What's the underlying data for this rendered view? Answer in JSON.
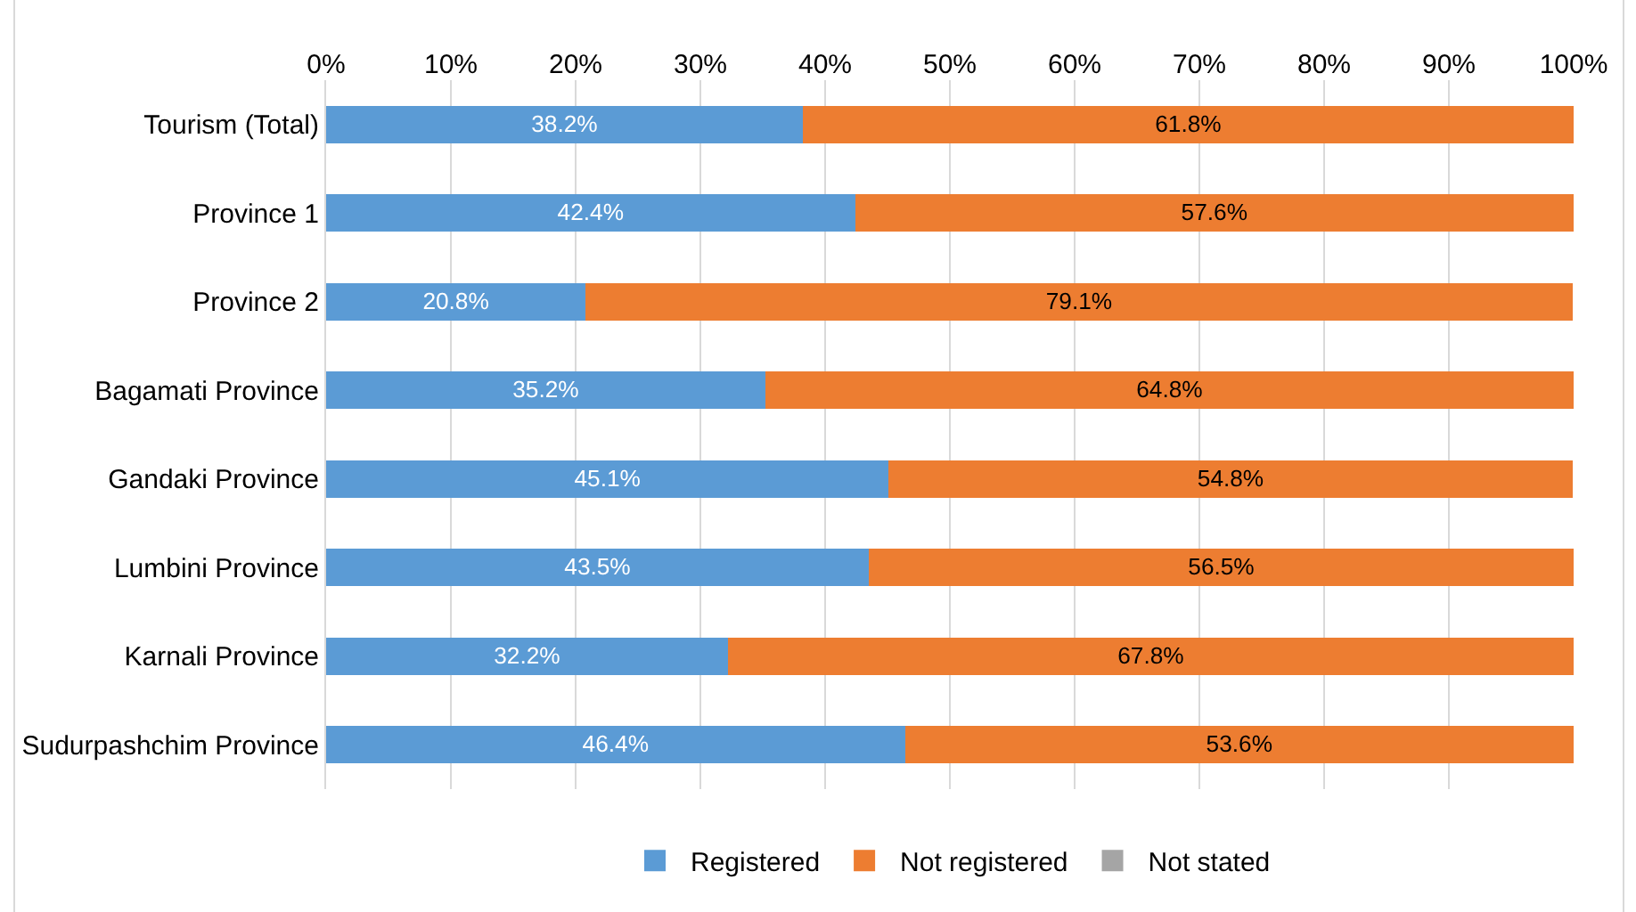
{
  "chart_data": {
    "type": "bar",
    "orientation": "horizontal",
    "stacked": true,
    "categories": [
      "Tourism (Total)",
      "Province 1",
      "Province 2",
      "Bagamati Province",
      "Gandaki Province",
      "Lumbini Province",
      "Karnali Province",
      "Sudurpashchim Province"
    ],
    "series": [
      {
        "name": "Registered",
        "color": "#5b9bd5",
        "values": [
          38.2,
          42.4,
          20.8,
          35.2,
          45.1,
          43.5,
          32.2,
          46.4
        ],
        "value_labels": [
          "38.2%",
          "42.4%",
          "20.8%",
          "35.2%",
          "45.1%",
          "43.5%",
          "32.2%",
          "46.4%"
        ]
      },
      {
        "name": "Not registered",
        "color": "#ed7d31",
        "values": [
          61.8,
          57.6,
          79.1,
          64.8,
          54.8,
          56.5,
          67.8,
          53.6
        ],
        "value_labels": [
          "61.8%",
          "57.6%",
          "79.1%",
          "64.8%",
          "54.8%",
          "56.5%",
          "67.8%",
          "53.6%"
        ]
      },
      {
        "name": "Not stated",
        "color": "#a5a5a5",
        "values": [
          0,
          0,
          null,
          0,
          null,
          0,
          0,
          0
        ]
      }
    ],
    "xlim": [
      0,
      100
    ],
    "xticks": [
      {
        "value": 0,
        "label": "0%"
      },
      {
        "value": 10,
        "label": "10%"
      },
      {
        "value": 20,
        "label": "20%"
      },
      {
        "value": 30,
        "label": "30%"
      },
      {
        "value": 40,
        "label": "40%"
      },
      {
        "value": 50,
        "label": "50%"
      },
      {
        "value": 60,
        "label": "60%"
      },
      {
        "value": 70,
        "label": "70%"
      },
      {
        "value": 80,
        "label": "80%"
      },
      {
        "value": 90,
        "label": "90%"
      },
      {
        "value": 100,
        "label": "100%"
      }
    ],
    "grid": "x",
    "legend": "bottom"
  }
}
